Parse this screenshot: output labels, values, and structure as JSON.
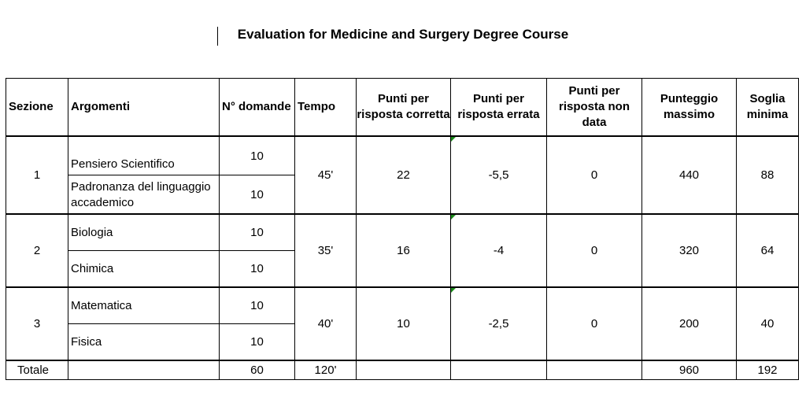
{
  "title": "Evaluation for Medicine and Surgery Degree Course",
  "headers": {
    "sezione": "Sezione",
    "argomenti": "Argomenti",
    "domande": "N° domande",
    "tempo": "Tempo",
    "corretta": "Punti per risposta corretta",
    "errata": "Punti per risposta errata",
    "non_data": "Punti per risposta non data",
    "massimo": "Punteggio massimo",
    "soglia": "Soglia minima"
  },
  "sections": [
    {
      "sezione": "1",
      "tempo": "45'",
      "corretta": "22",
      "errata": "-5,5",
      "non_data": "0",
      "massimo": "440",
      "soglia": "88",
      "topics": [
        {
          "name": "Pensiero Scientifico",
          "domande": "10"
        },
        {
          "name": "Padronanza del linguaggio accademico",
          "domande": "10"
        }
      ]
    },
    {
      "sezione": "2",
      "tempo": "35'",
      "corretta": "16",
      "errata": "-4",
      "non_data": "0",
      "massimo": "320",
      "soglia": "64",
      "topics": [
        {
          "name": "Biologia",
          "domande": "10"
        },
        {
          "name": "Chimica",
          "domande": "10"
        }
      ]
    },
    {
      "sezione": "3",
      "tempo": "40'",
      "corretta": "10",
      "errata": "-2,5",
      "non_data": "0",
      "massimo": "200",
      "soglia": "40",
      "topics": [
        {
          "name": "Matematica",
          "domande": "10"
        },
        {
          "name": "Fisica",
          "domande": "10"
        }
      ]
    }
  ],
  "totale": {
    "label": "Totale",
    "domande": "60",
    "tempo": "120'",
    "massimo": "960",
    "soglia": "192"
  },
  "colors": {
    "comment_flag": "#1a8a1a"
  }
}
